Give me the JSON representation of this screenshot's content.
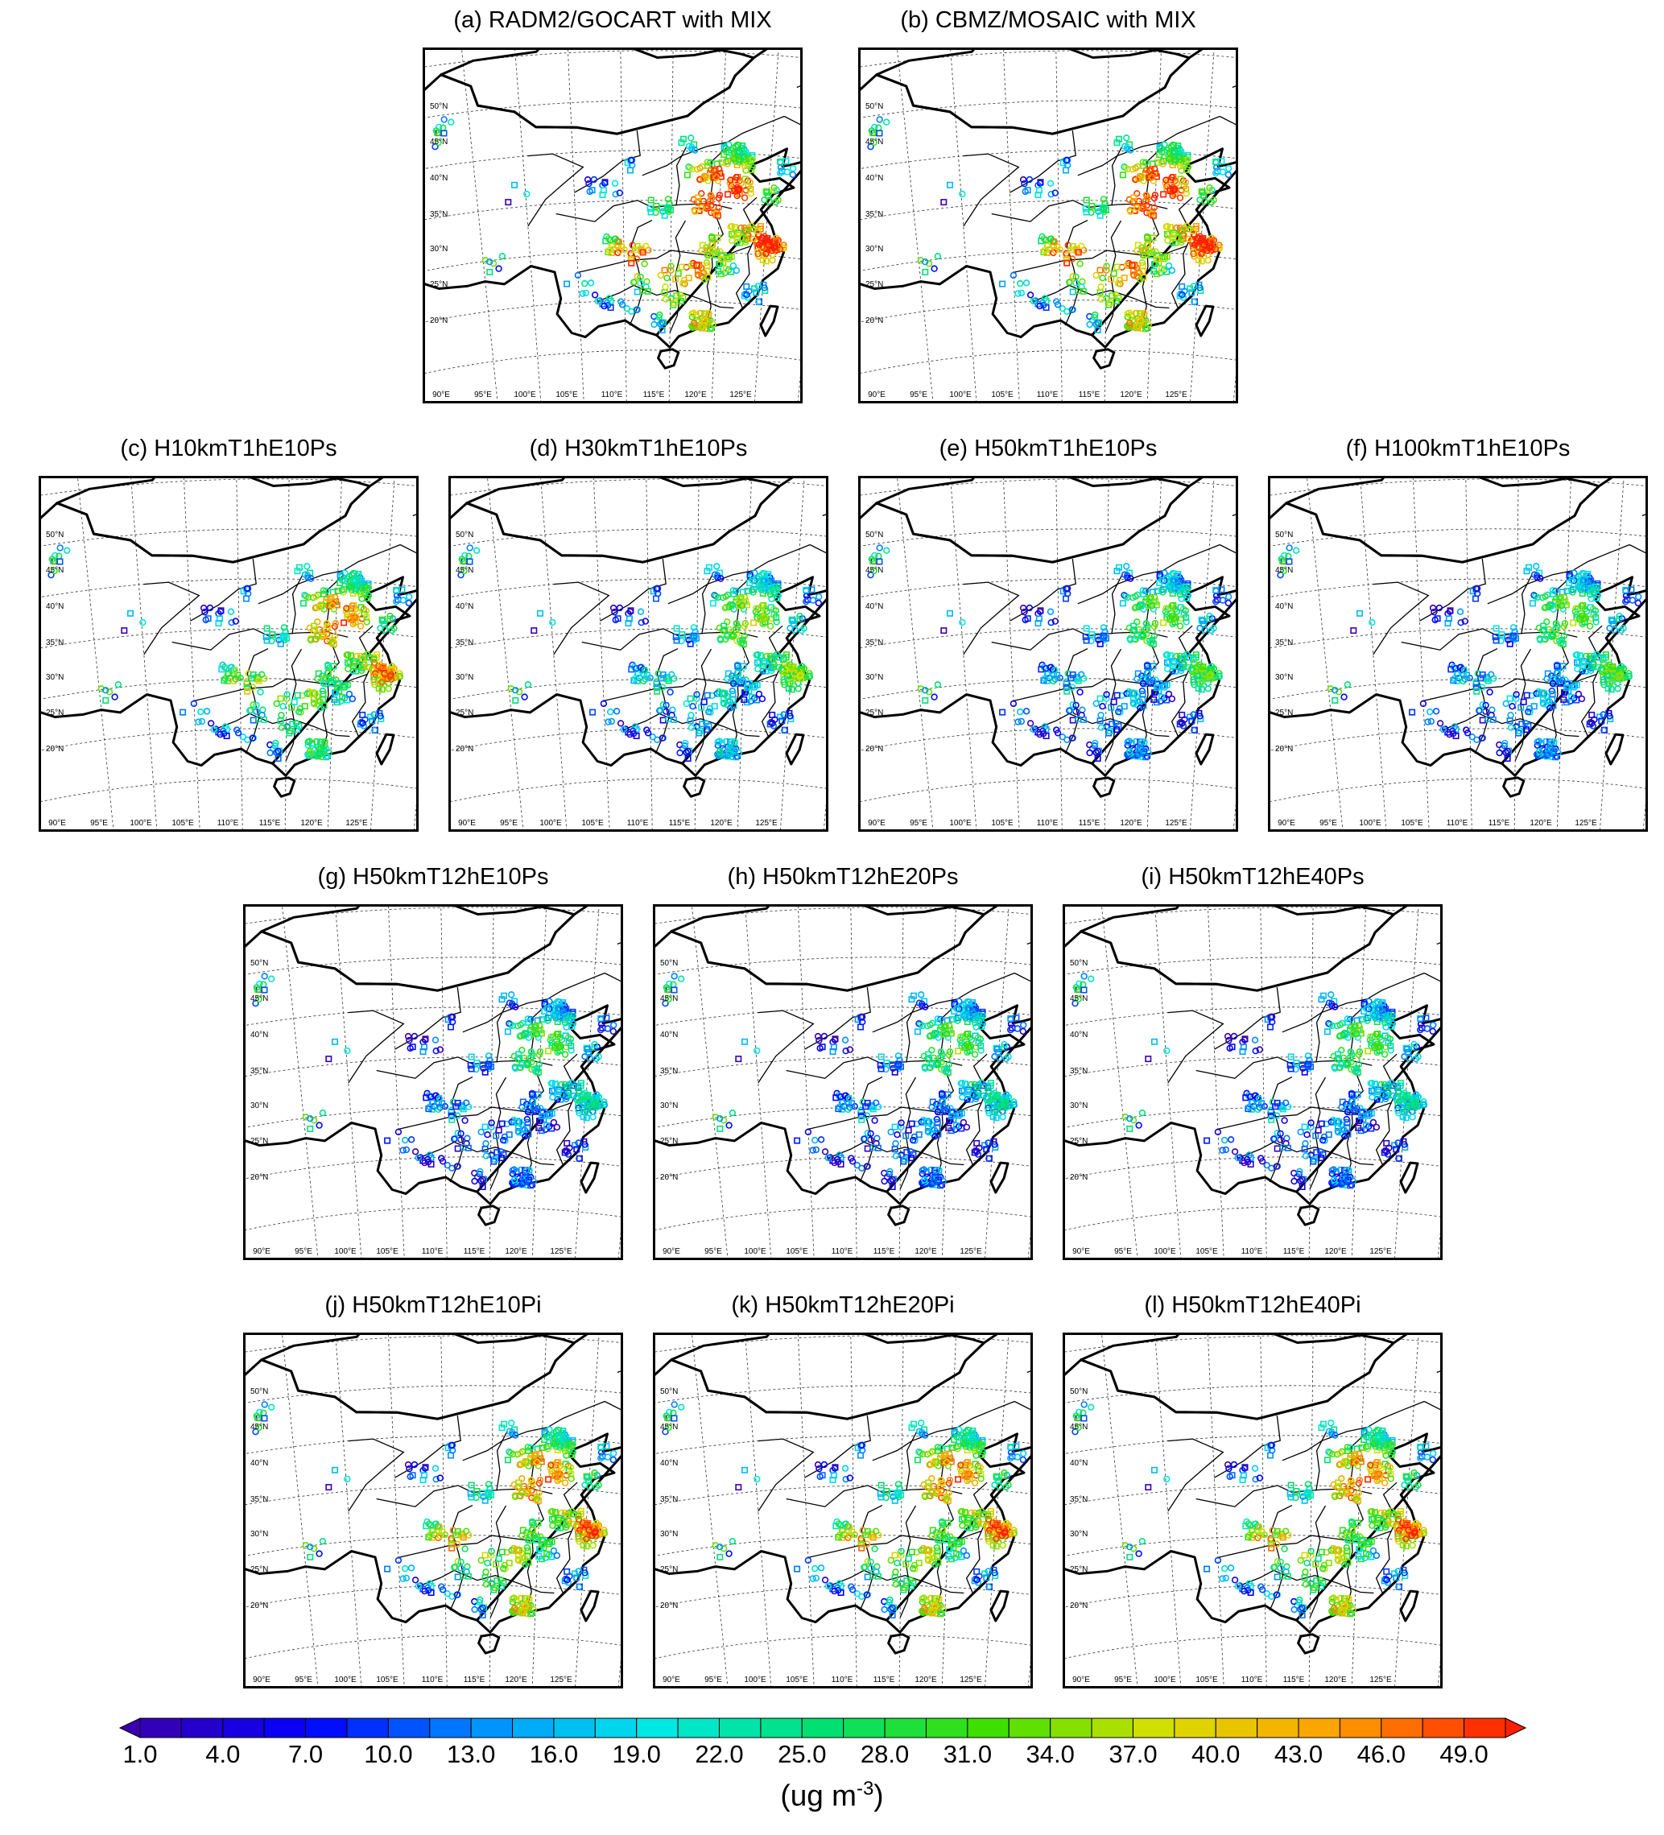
{
  "panels": [
    {
      "id": "a",
      "title": "(a) RADM2/GOCART with MIX",
      "pattern": "high"
    },
    {
      "id": "b",
      "title": "(b) CBMZ/MOSAIC with MIX",
      "pattern": "high"
    },
    {
      "id": "c",
      "title": "(c) H10kmT1hE10Ps",
      "pattern": "mid-high"
    },
    {
      "id": "d",
      "title": "(d) H30kmT1hE10Ps",
      "pattern": "mid"
    },
    {
      "id": "e",
      "title": "(e) H50kmT1hE10Ps",
      "pattern": "low-mid"
    },
    {
      "id": "f",
      "title": "(f) H100kmT1hE10Ps",
      "pattern": "low-mid"
    },
    {
      "id": "g",
      "title": "(g) H50kmT12hE10Ps",
      "pattern": "low"
    },
    {
      "id": "h",
      "title": "(h) H50kmT12hE20Ps",
      "pattern": "low"
    },
    {
      "id": "i",
      "title": "(i) H50kmT12hE40Ps",
      "pattern": "low"
    },
    {
      "id": "j",
      "title": "(j) H50kmT12hE10Pi",
      "pattern": "high-south"
    },
    {
      "id": "k",
      "title": "(k) H50kmT12hE20Pi",
      "pattern": "high-south"
    },
    {
      "id": "l",
      "title": "(l) H50kmT12hE40Pi",
      "pattern": "high-south"
    }
  ],
  "lat_ticks": [
    "50°N",
    "45°N",
    "40°N",
    "35°N",
    "30°N",
    "25°N",
    "20°N"
  ],
  "lon_ticks": [
    "90°E",
    "95°E",
    "100°E",
    "105°E",
    "110°E",
    "115°E",
    "120°E",
    "125°E"
  ],
  "colorbar": {
    "min": 1.0,
    "max": 49.0,
    "step": 1.5,
    "labels": [
      "1.0",
      "4.0",
      "7.0",
      "10.0",
      "13.0",
      "16.0",
      "19.0",
      "22.0",
      "25.0",
      "28.0",
      "31.0",
      "34.0",
      "37.0",
      "40.0",
      "43.0",
      "46.0",
      "49.0"
    ],
    "unit_base": "(ug m",
    "unit_exp": "-3",
    "unit_close": ")",
    "colors": [
      "#3a00b0",
      "#0000ff",
      "#0090ff",
      "#00e8e8",
      "#00e070",
      "#40e000",
      "#d8e000",
      "#ffa000",
      "#ff2000"
    ]
  },
  "marker_types": [
    "circle",
    "square"
  ]
}
